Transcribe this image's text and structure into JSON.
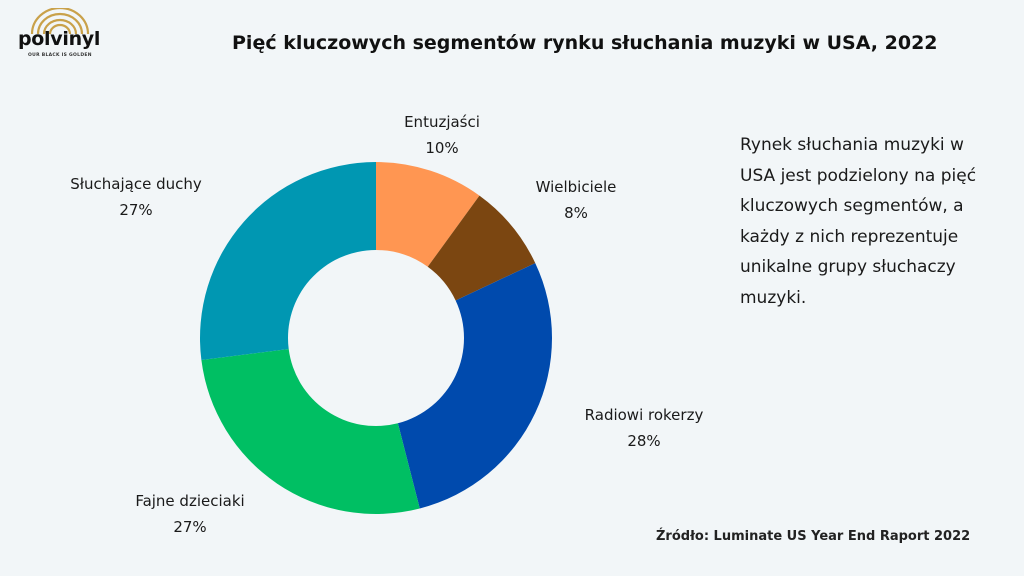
{
  "logo": {
    "name": "polvinyl",
    "tagline": "OUR BLACK IS GOLDEN"
  },
  "title": "Pięć kluczowych segmentów rynku słuchania muzyki w USA, 2022",
  "description": "Rynek słuchania muzyki w USA jest podzielony na pięć kluczowych segmentów, a każdy z nich reprezentuje unikalne grupy słuchaczy muzyki.",
  "source": "Źródło: Luminate US Year End Raport 2022",
  "chart_data": {
    "type": "pie",
    "donut": true,
    "start": "top",
    "direction": "clockwise",
    "slices": [
      {
        "name": "Entuzjaści",
        "value": 10,
        "percent_label": "10%",
        "color": "#ff9652"
      },
      {
        "name": "Wielbiciele",
        "value": 8,
        "percent_label": "8%",
        "color": "#7b4611"
      },
      {
        "name": "Radiowi rokerzy",
        "value": 28,
        "percent_label": "28%",
        "color": "#004aad"
      },
      {
        "name": "Fajne dzieciaki",
        "value": 27,
        "percent_label": "27%",
        "color": "#00bf63"
      },
      {
        "name": "Słuchające duchy",
        "value": 27,
        "percent_label": "27%",
        "color": "#0097b2"
      }
    ]
  }
}
